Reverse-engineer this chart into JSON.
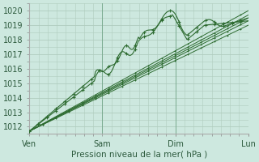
{
  "title": "",
  "xlabel": "Pression niveau de la mer( hPa )",
  "ylabel": "",
  "bg_color": "#cde8df",
  "grid_color": "#b0ccbe",
  "line_color": "#2d6b30",
  "ylim": [
    1011.5,
    1020.5
  ],
  "day_labels": [
    "Ven",
    "Sam",
    "Dim",
    "Lun"
  ],
  "day_positions": [
    0,
    0.333,
    0.667,
    1.0
  ],
  "yticks": [
    1012,
    1013,
    1014,
    1015,
    1016,
    1017,
    1018,
    1019,
    1020
  ],
  "marker": "+",
  "total_points": 200
}
